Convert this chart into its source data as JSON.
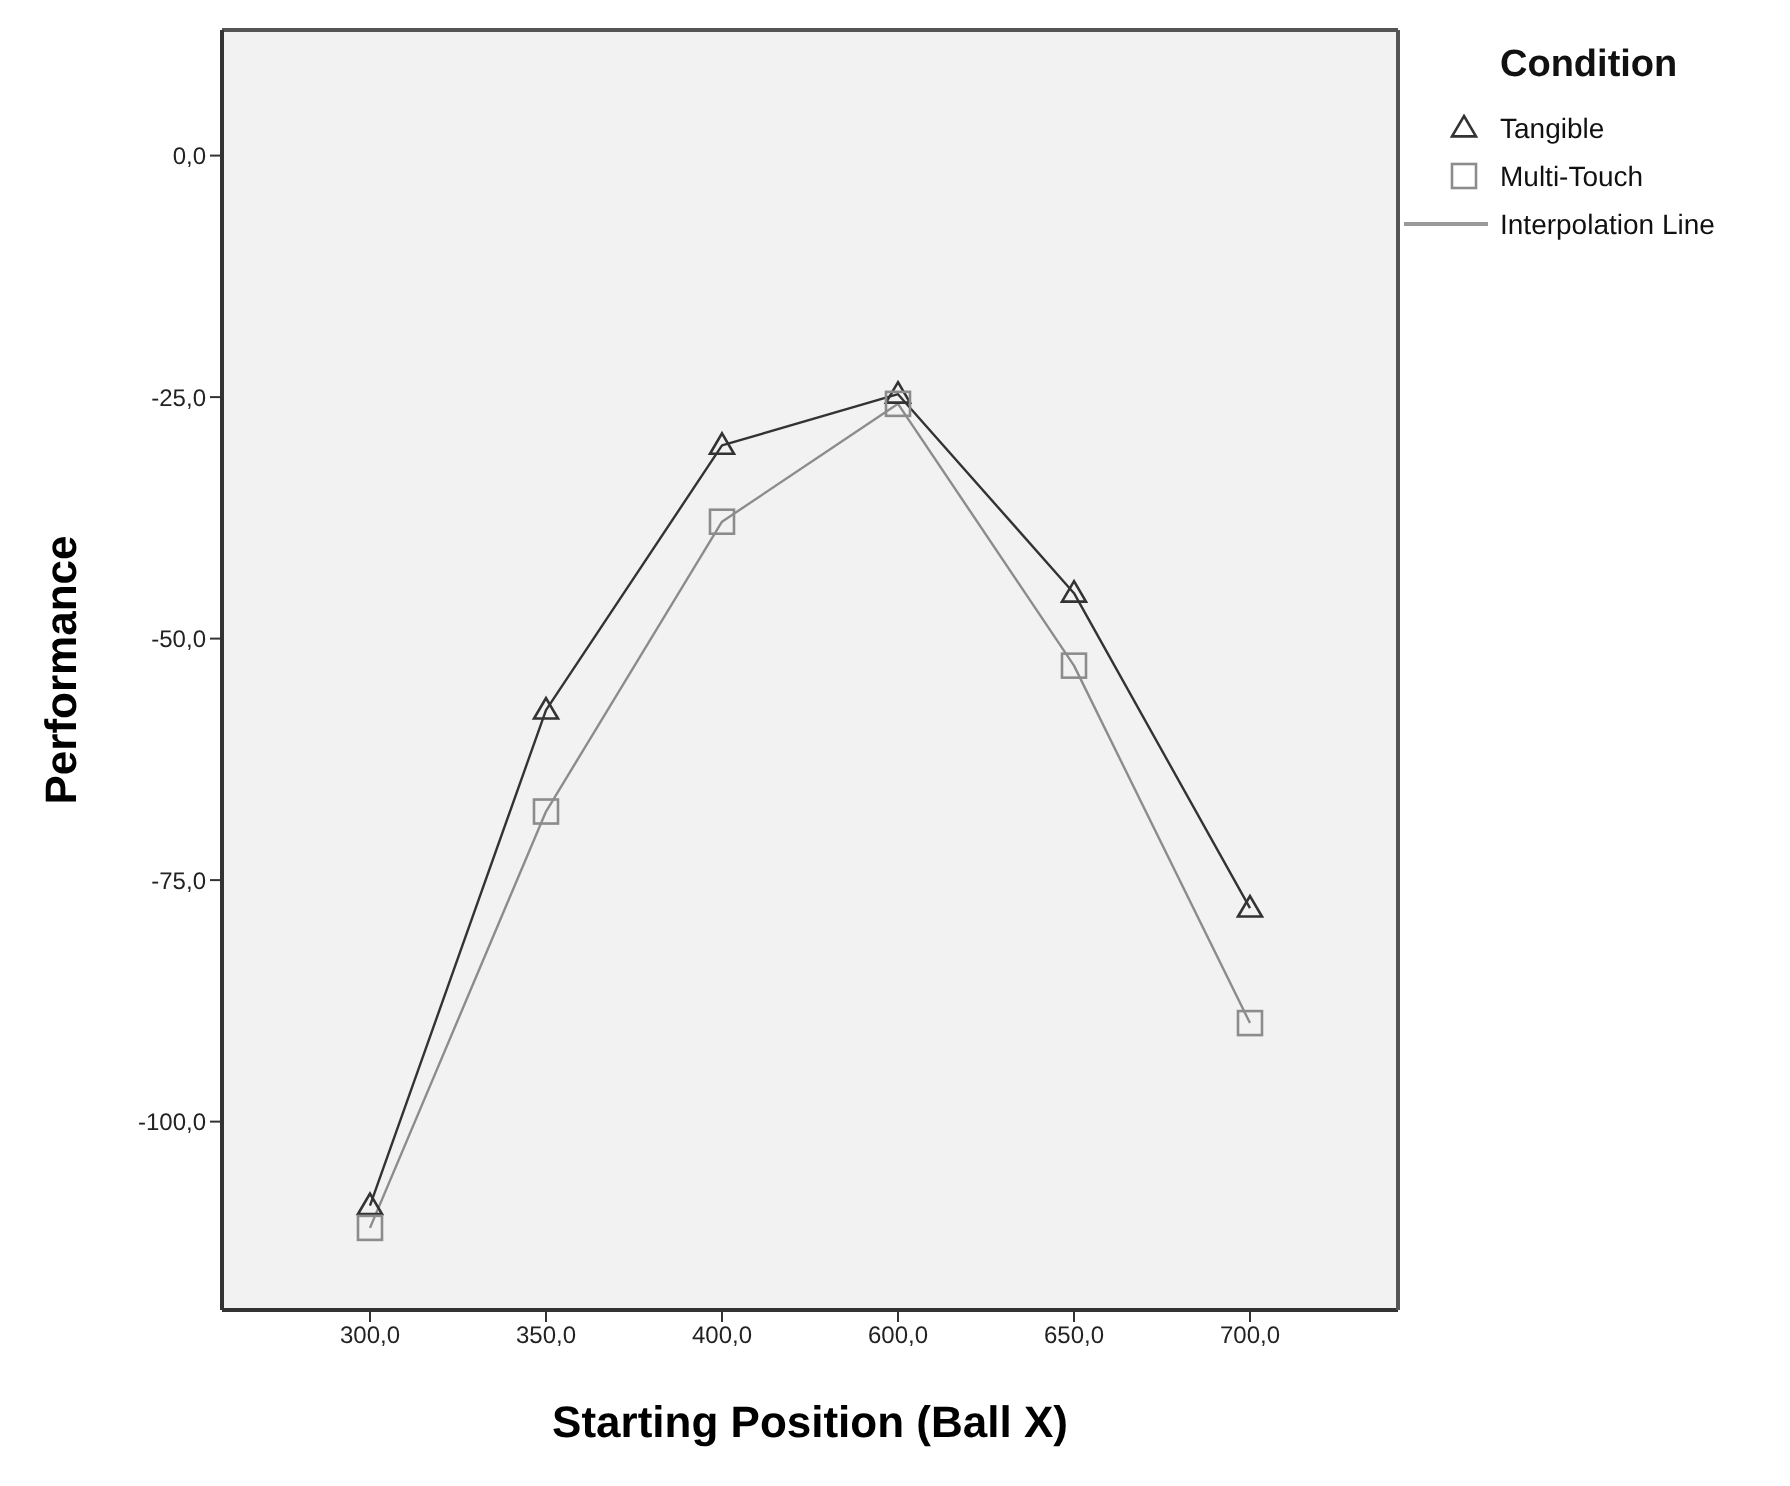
{
  "chart_data": {
    "type": "line",
    "xlabel": "Starting Position (Ball X)",
    "ylabel": "Performance",
    "legend_title": "Condition",
    "categories": [
      "300,0",
      "350,0",
      "400,0",
      "600,0",
      "650,0",
      "700,0"
    ],
    "series": [
      {
        "name": "Tangible",
        "color": "#333333",
        "marker": "triangle",
        "values": [
          -108.7,
          -57.4,
          -30.0,
          -24.7,
          -45.3,
          -77.9
        ]
      },
      {
        "name": "Multi-Touch",
        "color": "#8c8c8c",
        "marker": "square",
        "values": [
          -111.0,
          -67.9,
          -37.9,
          -25.7,
          -52.8,
          -89.8
        ]
      }
    ],
    "ylim": [
      -119.5,
      13
    ],
    "yticks": [
      {
        "value": -100,
        "label": "-100,0"
      },
      {
        "value": -75,
        "label": "-75,0"
      },
      {
        "value": -50,
        "label": "-50,0"
      },
      {
        "value": -25,
        "label": "-25,0"
      },
      {
        "value": 0,
        "label": "0,0"
      }
    ],
    "grid": false,
    "legend": "top right",
    "line_style": "solid",
    "annotations": [
      "Interpolation Line"
    ]
  }
}
